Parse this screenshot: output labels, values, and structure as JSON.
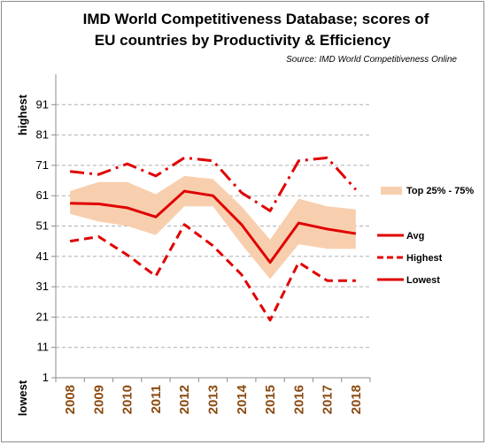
{
  "chart_data": {
    "type": "line",
    "title_line1": "IMD World Competitiveness Database; scores of",
    "title_line2": "EU countries by Productivity & Efficiency",
    "source": "Source: IMD World Competitiveness Online",
    "ylabel_top": "highest",
    "ylabel_bottom": "lowest",
    "ylim": [
      1,
      101
    ],
    "yticks": [
      1,
      11,
      21,
      31,
      41,
      51,
      61,
      71,
      81,
      91
    ],
    "grid": true,
    "legend_position": "right",
    "categories": [
      "2008",
      "2009",
      "2010",
      "2011",
      "2012",
      "2013",
      "2014",
      "2015",
      "2016",
      "2017",
      "2018"
    ],
    "band": {
      "name": "Top 25% - 75%",
      "color": "#f8cfae",
      "upper": [
        62.5,
        65.5,
        65.5,
        61.5,
        67.5,
        66.5,
        57.5,
        46.5,
        60,
        57.5,
        56.5
      ],
      "lower": [
        55,
        52.5,
        51,
        48,
        57.5,
        57.5,
        45,
        33.5,
        45,
        43.5,
        43.5
      ]
    },
    "series": [
      {
        "name": "Avg",
        "color": "#e00000",
        "style": "solid",
        "values": [
          58.5,
          58.3,
          57,
          54,
          62.5,
          61,
          51.5,
          39,
          52,
          50,
          48.5
        ]
      },
      {
        "name": "Highest",
        "color": "#e00000",
        "style": "dash",
        "values": [
          46,
          47.5,
          41.5,
          34.5,
          51.5,
          44.5,
          35,
          20,
          39,
          33,
          33
        ]
      },
      {
        "name": "Lowest",
        "color": "#e00000",
        "style": "dashdot",
        "values": [
          69,
          68,
          71.5,
          67.5,
          73.5,
          72.5,
          62,
          56,
          72.5,
          73.5,
          63
        ]
      }
    ]
  }
}
